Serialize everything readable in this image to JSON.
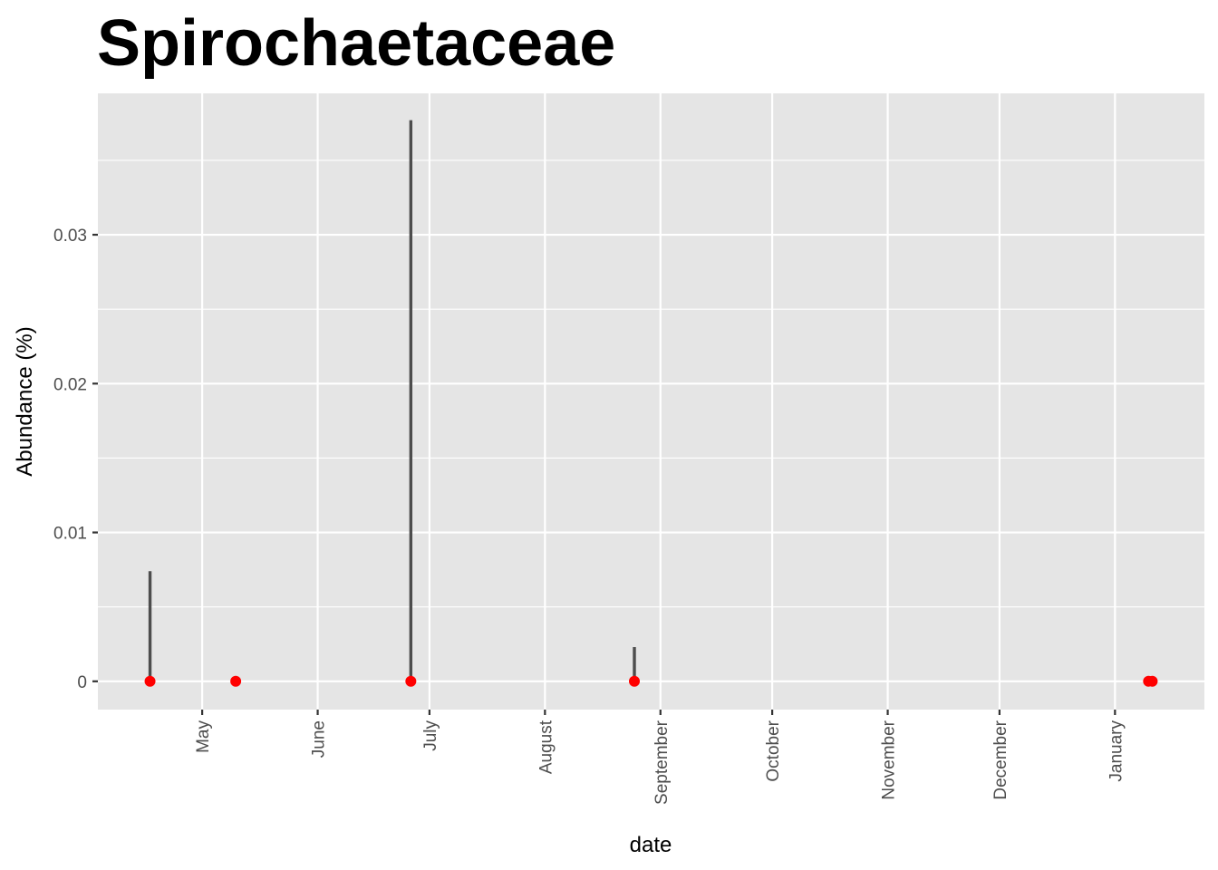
{
  "chart_data": {
    "type": "scatter",
    "title": "Spirochaetaceae",
    "xlabel": "date",
    "ylabel": "Abundance (%)",
    "x_tick_labels": [
      "May",
      "June",
      "July",
      "August",
      "September",
      "October",
      "November",
      "December",
      "January"
    ],
    "x_tick_dates": [
      "2023-05-01",
      "2023-06-01",
      "2023-07-01",
      "2023-08-01",
      "2023-09-01",
      "2023-10-01",
      "2023-11-01",
      "2023-12-01",
      "2024-01-01"
    ],
    "xlim": [
      "2023-04-03",
      "2024-01-25"
    ],
    "y_tick_labels": [
      "0",
      "0.01",
      "0.02",
      "0.03"
    ],
    "y_tick_values": [
      0,
      0.01,
      0.02,
      0.03
    ],
    "ylim": [
      -0.0019,
      0.0395
    ],
    "grid": true,
    "points": [
      {
        "x": "2023-04-17",
        "y": 0
      },
      {
        "x": "2023-05-10",
        "y": 0
      },
      {
        "x": "2023-06-26",
        "y": 0
      },
      {
        "x": "2023-08-25",
        "y": 0
      },
      {
        "x": "2024-01-10",
        "y": 0
      },
      {
        "x": "2024-01-11",
        "y": 0
      }
    ],
    "error_bars": [
      {
        "x": "2023-04-17",
        "low": 0,
        "high": 0.0074
      },
      {
        "x": "2023-06-26",
        "low": 0,
        "high": 0.0377
      },
      {
        "x": "2023-08-25",
        "low": 0,
        "high": 0.0023
      }
    ],
    "point_color": "#ff0000",
    "bar_color": "#4d4d4d",
    "panel_background": "#e5e5e5",
    "grid_color": "#ffffff"
  }
}
